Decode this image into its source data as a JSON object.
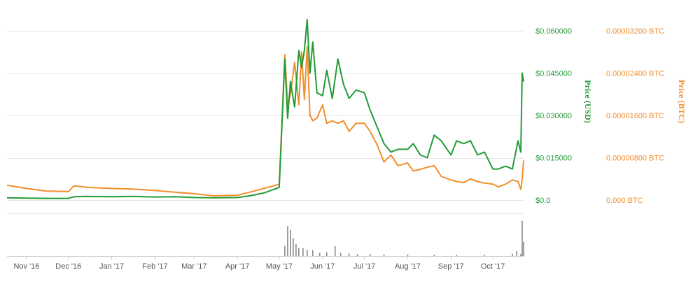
{
  "chart_data": {
    "type": "line",
    "colors": {
      "usd": "#239b37",
      "btc": "#f28e2b",
      "volume": "#8a8a8a",
      "grid": "#e6e6e6"
    },
    "x_ticks": [
      "Nov '16",
      "Dec '16",
      "Jan '17",
      "Feb '17",
      "Mar '17",
      "Apr '17",
      "May '17",
      "Jun '17",
      "Jul '17",
      "Aug '17",
      "Sep '17",
      "Oct '17"
    ],
    "y_left": {
      "label": "Price (USD)",
      "ticks": [
        "$0.0",
        "$0.015000",
        "$0.030000",
        "$0.045000",
        "$0.060000"
      ],
      "tick_values": [
        0,
        0.015,
        0.03,
        0.045,
        0.06
      ],
      "ylim": [
        0,
        0.06
      ]
    },
    "y_right": {
      "label": "Price (BTC)",
      "ticks": [
        "0.000 BTC",
        "0.00000800 BTC",
        "0.00001600 BTC",
        "0.00002400 BTC",
        "0.00003200 BTC"
      ],
      "tick_values": [
        0,
        8e-06,
        1.6e-05,
        2.4e-05,
        3.2e-05
      ],
      "ylim": [
        0,
        3.2e-05
      ]
    },
    "grid": true,
    "x": [
      "2016-10-18",
      "2016-11-01",
      "2016-11-15",
      "2016-12-01",
      "2016-12-05",
      "2016-12-15",
      "2017-01-01",
      "2017-01-15",
      "2017-02-01",
      "2017-02-15",
      "2017-03-01",
      "2017-03-15",
      "2017-04-01",
      "2017-04-10",
      "2017-04-20",
      "2017-05-01",
      "2017-05-05",
      "2017-05-07",
      "2017-05-09",
      "2017-05-12",
      "2017-05-15",
      "2017-05-17",
      "2017-05-19",
      "2017-05-21",
      "2017-05-23",
      "2017-05-25",
      "2017-05-28",
      "2017-06-01",
      "2017-06-04",
      "2017-06-08",
      "2017-06-12",
      "2017-06-16",
      "2017-06-20",
      "2017-06-25",
      "2017-07-01",
      "2017-07-05",
      "2017-07-10",
      "2017-07-15",
      "2017-07-20",
      "2017-07-25",
      "2017-08-01",
      "2017-08-05",
      "2017-08-10",
      "2017-08-15",
      "2017-08-20",
      "2017-08-25",
      "2017-09-01",
      "2017-09-05",
      "2017-09-10",
      "2017-09-15",
      "2017-09-20",
      "2017-09-25",
      "2017-10-01",
      "2017-10-05",
      "2017-10-10",
      "2017-10-15",
      "2017-10-19",
      "2017-10-21",
      "2017-10-22",
      "2017-10-23"
    ],
    "series": [
      {
        "name": "Price (USD)",
        "axis": "left",
        "values": [
          0.0008,
          0.0007,
          0.0006,
          0.0006,
          0.0012,
          0.0013,
          0.0012,
          0.0013,
          0.0011,
          0.0012,
          0.0009,
          0.0008,
          0.0009,
          0.0015,
          0.0025,
          0.0045,
          0.05,
          0.029,
          0.042,
          0.033,
          0.053,
          0.047,
          0.053,
          0.064,
          0.045,
          0.056,
          0.038,
          0.037,
          0.046,
          0.036,
          0.05,
          0.041,
          0.036,
          0.039,
          0.038,
          0.032,
          0.026,
          0.02,
          0.017,
          0.018,
          0.018,
          0.02,
          0.016,
          0.015,
          0.023,
          0.021,
          0.016,
          0.021,
          0.02,
          0.021,
          0.016,
          0.017,
          0.011,
          0.011,
          0.012,
          0.011,
          0.021,
          0.017,
          0.045,
          0.042
        ]
      },
      {
        "name": "Price (BTC)",
        "axis": "right",
        "values": [
          2.8e-06,
          2.2e-06,
          1.7e-06,
          1.6e-06,
          2.7e-06,
          2.4e-06,
          2.2e-06,
          2.1e-06,
          1.8e-06,
          1.5e-06,
          1.2e-06,
          8e-07,
          9e-07,
          1.5e-06,
          2.2e-06,
          3e-06,
          2.75e-05,
          1.8e-05,
          2e-05,
          2.6e-05,
          1.8e-05,
          2.8e-05,
          1.9e-05,
          2.9e-05,
          1.6e-05,
          1.5e-05,
          1.55e-05,
          1.8e-05,
          1.45e-05,
          1.5e-05,
          1.45e-05,
          1.5e-05,
          1.3e-05,
          1.45e-05,
          1.45e-05,
          1.3e-05,
          1.05e-05,
          7.2e-06,
          8.5e-06,
          6.5e-06,
          7e-06,
          5.5e-06,
          5.8e-06,
          6.2e-06,
          6.5e-06,
          4.5e-06,
          3.8e-06,
          3.5e-06,
          3.3e-06,
          4e-06,
          3.5e-06,
          3.2e-06,
          3e-06,
          2.5e-06,
          3e-06,
          3.8e-06,
          3.5e-06,
          2e-06,
          4e-06,
          7.5e-06
        ]
      },
      {
        "name": "Volume",
        "axis": "volume",
        "type": "bar",
        "x": [
          "2017-05-05",
          "2017-05-07",
          "2017-05-09",
          "2017-05-11",
          "2017-05-13",
          "2017-05-15",
          "2017-05-18",
          "2017-05-21",
          "2017-05-25",
          "2017-05-30",
          "2017-06-04",
          "2017-06-10",
          "2017-06-14",
          "2017-06-20",
          "2017-06-26",
          "2017-07-05",
          "2017-07-15",
          "2017-08-01",
          "2017-08-20",
          "2017-09-05",
          "2017-09-25",
          "2017-10-15",
          "2017-10-18",
          "2017-10-21",
          "2017-10-22",
          "2017-10-23"
        ],
        "values": [
          0.25,
          0.75,
          0.65,
          0.45,
          0.3,
          0.2,
          0.2,
          0.15,
          0.15,
          0.08,
          0.1,
          0.25,
          0.08,
          0.06,
          0.05,
          0.05,
          0.04,
          0.04,
          0.03,
          0.03,
          0.03,
          0.06,
          0.12,
          0.05,
          0.88,
          0.35
        ]
      }
    ]
  }
}
